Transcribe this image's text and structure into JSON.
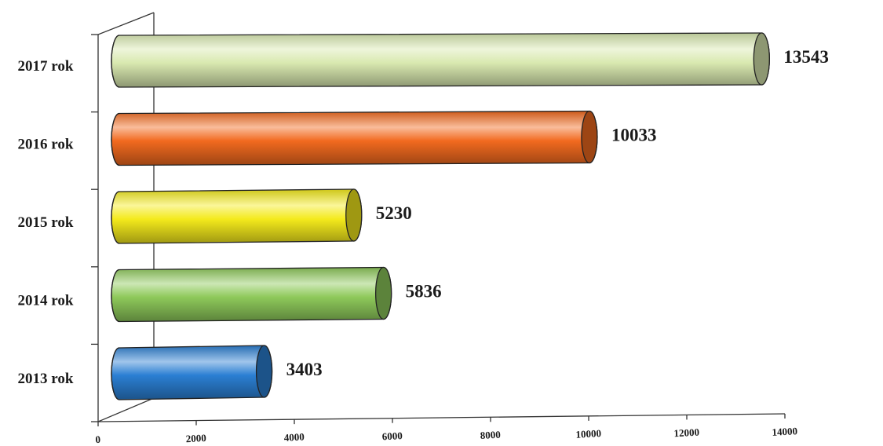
{
  "chart_data": {
    "type": "bar",
    "orientation": "horizontal",
    "style": "3d-cylinder",
    "categories": [
      "2013 rok",
      "2014 rok",
      "2015 rok",
      "2016 rok",
      "2017 rok"
    ],
    "values": [
      3403,
      5836,
      5230,
      10033,
      13543
    ],
    "value_labels": [
      "3403",
      "5836",
      "5230",
      "10033",
      "13543"
    ],
    "xlim": [
      0,
      14000
    ],
    "xticks": [
      "0",
      "2000",
      "4000",
      "6000",
      "8000",
      "10000",
      "12000",
      "14000"
    ],
    "xtick_values": [
      0,
      2000,
      4000,
      6000,
      8000,
      10000,
      12000,
      14000
    ],
    "grid": false,
    "legend": "none",
    "colors": {
      "2013 rok": "#2b7fd3",
      "2014 rok": "#8ec95a",
      "2015 rok": "#f4ea1c",
      "2016 rok": "#f26a1f",
      "2017 rok": "#d9e9b0"
    }
  }
}
